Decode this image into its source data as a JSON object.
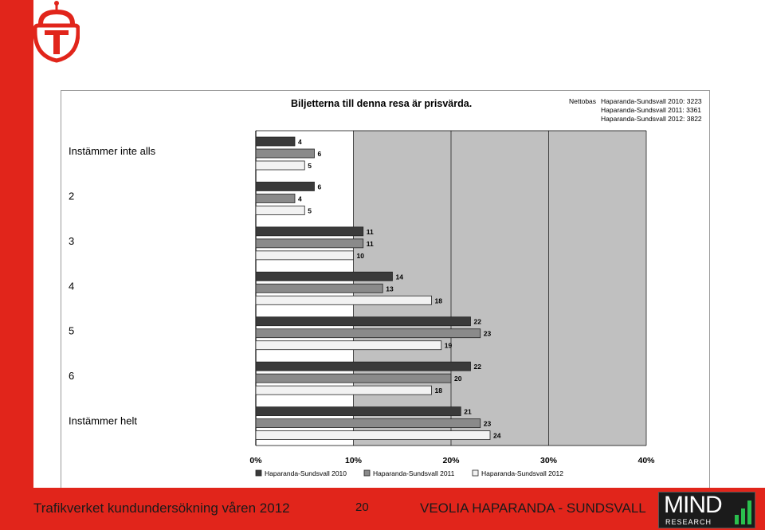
{
  "chart_data": {
    "type": "bar",
    "orientation": "horizontal",
    "title": "Biljetterna till denna resa är prisvärda.",
    "categories": [
      "Instämmer inte alls",
      "2",
      "3",
      "4",
      "5",
      "6",
      "Instämmer helt"
    ],
    "series": [
      {
        "name": "Haparanda-Sundsvall 2010",
        "color": "#3a3a3a",
        "values": [
          4,
          6,
          11,
          14,
          22,
          22,
          21
        ]
      },
      {
        "name": "Haparanda-Sundsvall 2011",
        "color": "#8a8a8a",
        "values": [
          6,
          4,
          11,
          13,
          23,
          20,
          23
        ]
      },
      {
        "name": "Haparanda-Sundsvall 2012",
        "color": "#f2f2f2",
        "values": [
          5,
          5,
          10,
          18,
          19,
          18,
          24
        ]
      }
    ],
    "x_ticks": [
      "0%",
      "10%",
      "20%",
      "30%",
      "40%"
    ],
    "xlim": [
      0,
      40
    ],
    "unit": "%",
    "legend_position": "bottom",
    "grid": true,
    "nettobas": {
      "label": "Nettobas",
      "lines": [
        "Haparanda-Sundsvall 2010: 3223",
        "Haparanda-Sundsvall 2011: 3361",
        "Haparanda-Sundsvall 2012: 3822"
      ]
    }
  },
  "footer": {
    "left_text": "Trafikverket kundundersökning våren 2012",
    "page_number": "20",
    "right_text": "VEOLIA HAPARANDA - SUNDSVALL",
    "logo_text": "MIND",
    "logo_subtext": "RESEARCH"
  },
  "colors": {
    "brand_red": "#e1251b",
    "plot_background": "#c0c0c0"
  }
}
